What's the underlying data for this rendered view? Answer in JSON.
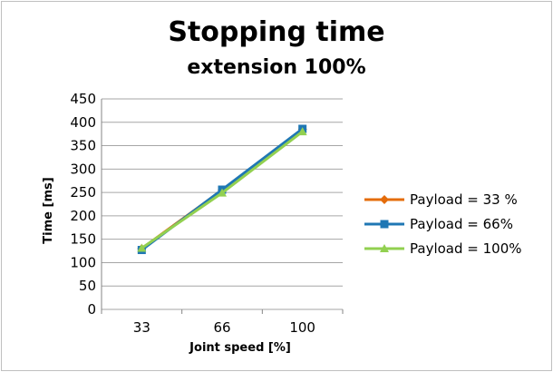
{
  "chart_data": {
    "type": "line",
    "title_line1": "Stopping time",
    "title_line2": "extension 100%",
    "xlabel": "Joint speed [%]",
    "ylabel": "Time [ms]",
    "categories": [
      "33",
      "66",
      "100"
    ],
    "ylim": [
      0,
      450
    ],
    "yticks": [
      0,
      50,
      100,
      150,
      200,
      250,
      300,
      350,
      400,
      450
    ],
    "grid": true,
    "legend_position": "right",
    "series": [
      {
        "name": "Payload = 33 %",
        "values": [
          130,
          255,
          385
        ],
        "color": "#E46C0A",
        "marker": "diamond"
      },
      {
        "name": "Payload = 66%",
        "values": [
          127,
          256,
          386
        ],
        "color": "#1F77B4",
        "marker": "square"
      },
      {
        "name": "Payload = 100%",
        "values": [
          131,
          249,
          380
        ],
        "color": "#92D050",
        "marker": "triangle"
      }
    ]
  }
}
